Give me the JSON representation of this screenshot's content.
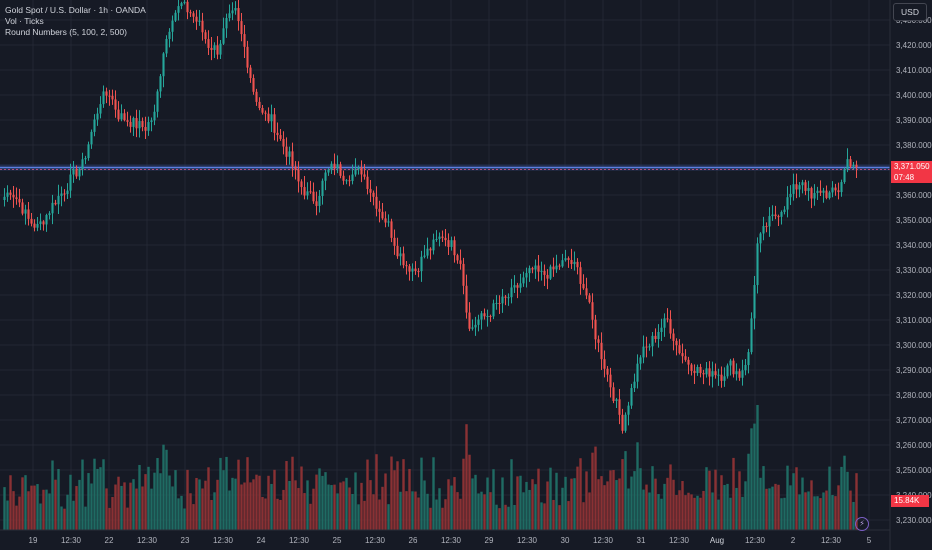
{
  "legend": {
    "title": "Gold Spot / U.S. Dollar · 1h · OANDA",
    "vol": "Vol · Ticks",
    "round": "Round Numbers (5, 100, 2, 500)"
  },
  "currency_button": "USD",
  "last_price_label": "3,371.050",
  "countdown_label": "07:48",
  "volume_label": "15.84K",
  "colors": {
    "up": "#26a69a",
    "down": "#ef5350",
    "vol_up": "#1f6b63",
    "vol_down": "#8a3134",
    "bg": "#161a25",
    "grid": "#232733",
    "text": "#b2b5be",
    "level": "#5b7fe0"
  },
  "chart_data": {
    "type": "candlestick",
    "symbol": "Gold Spot / U.S. Dollar",
    "interval": "1h",
    "y_ticks": [
      "3,430.000",
      "3,420.000",
      "3,410.000",
      "3,400.000",
      "3,390.000",
      "3,380.000",
      "3,370.000",
      "3,360.000",
      "3,350.000",
      "3,340.000",
      "3,330.000",
      "3,320.000",
      "3,310.000",
      "3,300.000",
      "3,290.000",
      "3,280.000",
      "3,270.000",
      "3,260.000",
      "3,250.000",
      "3,240.000",
      "3,230.000"
    ],
    "ylim": [
      3226,
      3438
    ],
    "x_ticks": [
      "19",
      "12:30",
      "22",
      "12:30",
      "23",
      "12:30",
      "24",
      "12:30",
      "25",
      "12:30",
      "26",
      "12:30",
      "29",
      "12:30",
      "30",
      "12:30",
      "31",
      "12:30",
      "Aug",
      "12:30",
      "2",
      "12:30",
      "5"
    ],
    "horizontal_level": 3371,
    "last_price": 3371.05,
    "price_path": [
      3358,
      3362,
      3357,
      3350,
      3347,
      3352,
      3358,
      3362,
      3368,
      3372,
      3385,
      3398,
      3401,
      3392,
      3390,
      3388,
      3387,
      3392,
      3418,
      3432,
      3436,
      3433,
      3428,
      3420,
      3418,
      3429,
      3433,
      3419,
      3402,
      3392,
      3390,
      3382,
      3375,
      3365,
      3360,
      3358,
      3368,
      3372,
      3368,
      3368,
      3370,
      3362,
      3354,
      3348,
      3338,
      3332,
      3330,
      3336,
      3340,
      3344,
      3340,
      3334,
      3306,
      3310,
      3312,
      3316,
      3318,
      3322,
      3326,
      3330,
      3328,
      3329,
      3332,
      3334,
      3330,
      3320,
      3304,
      3292,
      3280,
      3268,
      3282,
      3296,
      3300,
      3306,
      3310,
      3300,
      3294,
      3291,
      3288,
      3290,
      3288,
      3292,
      3288,
      3296,
      3340,
      3348,
      3352,
      3356,
      3362,
      3366,
      3358,
      3362,
      3360,
      3362,
      3374,
      3372
    ]
  }
}
